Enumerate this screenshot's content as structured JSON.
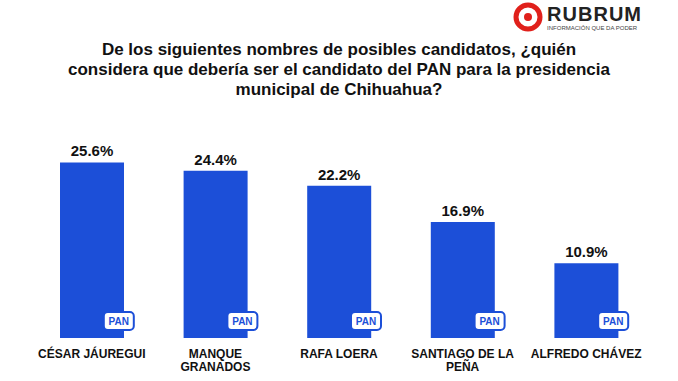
{
  "chart_data": {
    "type": "bar",
    "title": "De los siguientes nombres de posibles candidatos, ¿quién considera que debería ser el candidato del PAN para la presidencia municipal de Chihuahua?",
    "logo": "RUBRUM",
    "tagline": "INFORMACIÓN QUE DA PODER",
    "badge": "PAN",
    "categories": [
      "CÉSAR JÁUREGUI",
      "MANQUE GRANADOS",
      "RAFA LOERA",
      "SANTIAGO DE LA PEÑA",
      "ALFREDO CHÁVEZ"
    ],
    "values": [
      25.6,
      24.4,
      22.2,
      16.9,
      10.9
    ],
    "value_labels": [
      "25.6%",
      "24.4%",
      "22.2%",
      "16.9%",
      "10.9%"
    ],
    "data_labels": true,
    "color": "#1c4fd8",
    "ylim": [
      0,
      28
    ],
    "grid": false,
    "tick_labels": "x"
  }
}
